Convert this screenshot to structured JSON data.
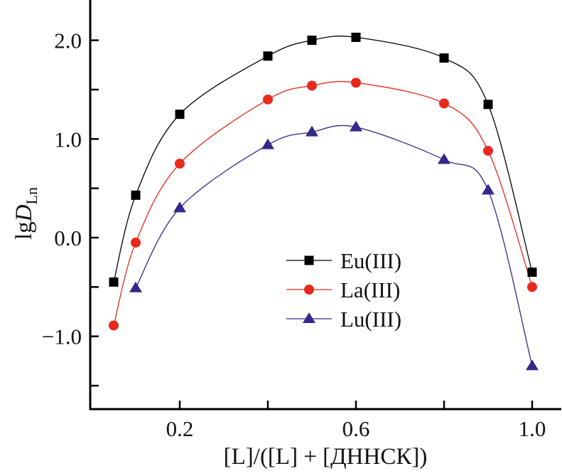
{
  "chart_data": {
    "type": "scatter",
    "title": "",
    "xlabel": "[L]/([L] + [ДННСК])",
    "ylabel": {
      "main": "lg",
      "italic": "D",
      "subscript": "Ln"
    },
    "xlim": [
      0,
      1.06
    ],
    "ylim": [
      -1.73,
      2.41
    ],
    "x_ticks_major": [
      0.2,
      0.6,
      1.0
    ],
    "x_tick_labels": [
      "0.2",
      "0.6",
      "1.0"
    ],
    "x_ticks_minor": [
      0.4,
      0.8
    ],
    "y_ticks_major": [
      2.0,
      1.0,
      0.0,
      -1.0
    ],
    "y_tick_labels": [
      "2.0",
      "1.0",
      "0.0",
      "−1.0"
    ],
    "y_ticks_minor": [
      1.5,
      0.5,
      -0.5,
      -1.5
    ],
    "grid": false,
    "legend_position": "center-bottom",
    "series": [
      {
        "name": "Eu(III)",
        "color": "#000000",
        "marker": "square",
        "x": [
          0.05,
          0.1,
          0.2,
          0.4,
          0.5,
          0.6,
          0.8,
          0.9,
          1.0
        ],
        "y": [
          -0.45,
          0.43,
          1.25,
          1.84,
          2.0,
          2.03,
          1.82,
          1.35,
          -0.35
        ]
      },
      {
        "name": "La(III)",
        "color": "#e8291c",
        "marker": "circle",
        "x": [
          0.05,
          0.1,
          0.2,
          0.4,
          0.5,
          0.6,
          0.8,
          0.9,
          1.0
        ],
        "y": [
          -0.89,
          -0.05,
          0.75,
          1.4,
          1.54,
          1.57,
          1.36,
          0.88,
          -0.5
        ]
      },
      {
        "name": "Lu(III)",
        "color": "#33298a",
        "marker": "triangle",
        "x": [
          0.1,
          0.2,
          0.4,
          0.5,
          0.6,
          0.8,
          0.9,
          1.0
        ],
        "y": [
          -0.51,
          0.3,
          0.94,
          1.07,
          1.12,
          0.79,
          0.48,
          -1.3
        ]
      }
    ]
  }
}
